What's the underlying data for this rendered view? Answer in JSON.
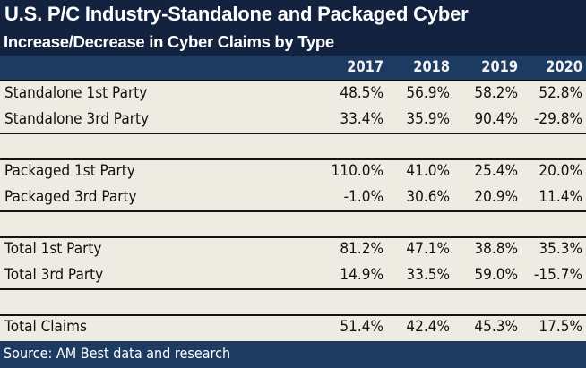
{
  "title": "U.S. P/C Industry-Standalone and Packaged Cyber",
  "subtitle": "Increase/Decrease in Cyber Claims by Type",
  "columns": [
    "2017",
    "2018",
    "2019",
    "2020"
  ],
  "groups": [
    {
      "rows": [
        {
          "label": "Standalone 1st Party",
          "values": [
            "48.5%",
            "56.9%",
            "58.2%",
            "52.8%"
          ]
        },
        {
          "label": "Standalone 3rd Party",
          "values": [
            "33.4%",
            "35.9%",
            "90.4%",
            "-29.8%"
          ]
        }
      ]
    },
    {
      "rows": [
        {
          "label": "Packaged 1st Party",
          "values": [
            "110.0%",
            "41.0%",
            "25.4%",
            "20.0%"
          ]
        },
        {
          "label": "Packaged 3rd Party",
          "values": [
            "-1.0%",
            "30.6%",
            "20.9%",
            "11.4%"
          ]
        }
      ]
    },
    {
      "rows": [
        {
          "label": "Total 1st Party",
          "values": [
            "81.2%",
            "47.1%",
            "38.8%",
            "35.3%"
          ]
        },
        {
          "label": "Total 3rd Party",
          "values": [
            "14.9%",
            "33.5%",
            "59.0%",
            "-15.7%"
          ]
        }
      ]
    },
    {
      "rows": [
        {
          "label": "Total Claims",
          "values": [
            "51.4%",
            "42.4%",
            "45.3%",
            "17.5%"
          ]
        }
      ]
    }
  ],
  "source": "Source: AM Best data and research",
  "colors": {
    "title_background": "#13233f",
    "header_background": "#1d3a60",
    "body_background": "#eeebe2",
    "text": "#111111"
  }
}
